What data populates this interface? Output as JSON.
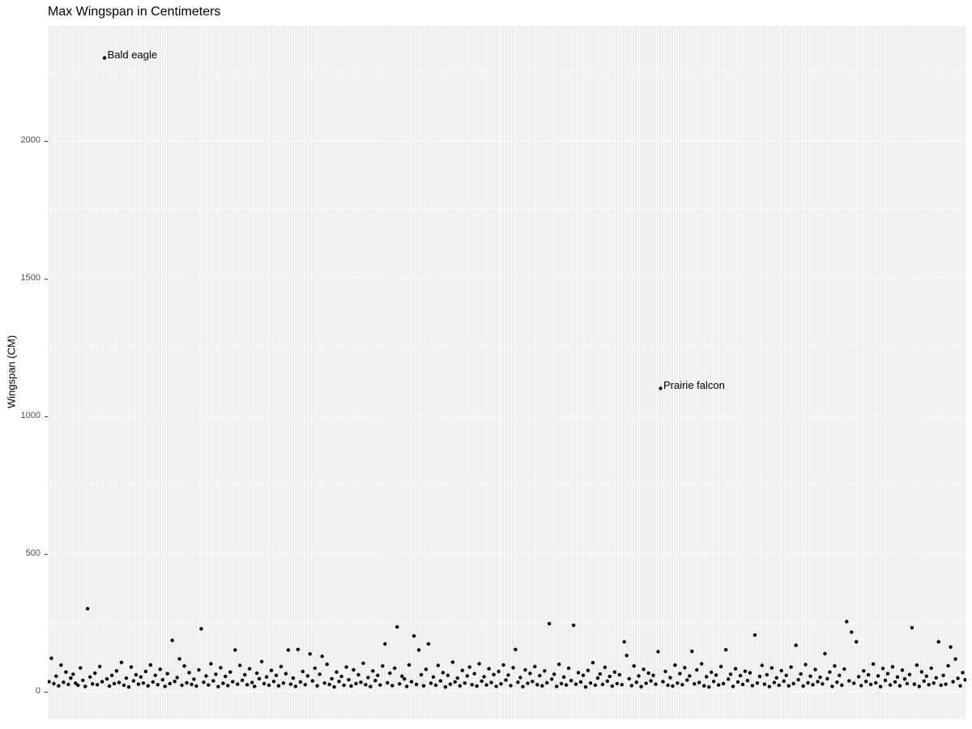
{
  "chart_data": {
    "type": "scatter",
    "title": "Max Wingspan in Centimeters",
    "ylabel": "Wingspan (CM)",
    "xlabel": "",
    "x_axis": "bird species (unlabeled categorical axis, one point per species)",
    "y_ticks": [
      0,
      500,
      1000,
      1500,
      2000
    ],
    "y_minor_gridlines": [
      250,
      750,
      1250,
      1750,
      2250
    ],
    "y_range_shown": [
      -95,
      2415
    ],
    "grid": "grey panel, white major/minor horizontal gridlines, dense white vertical gridlines",
    "legend": "none",
    "annotations": [
      {
        "label": "Bald eagle",
        "index": 23,
        "value": 2300
      },
      {
        "label": "Prairie falcon",
        "index": 253,
        "value": 1100
      }
    ],
    "values": [
      35,
      120,
      28,
      55,
      20,
      95,
      33,
      70,
      25,
      48,
      62,
      30,
      22,
      85,
      40,
      18,
      300,
      52,
      27,
      66,
      24,
      90,
      35,
      2300,
      45,
      19,
      58,
      28,
      74,
      32,
      105,
      22,
      48,
      16,
      88,
      38,
      60,
      26,
      52,
      30,
      72,
      20,
      96,
      34,
      58,
      24,
      80,
      42,
      18,
      64,
      28,
      185,
      36,
      50,
      118,
      22,
      92,
      31,
      68,
      25,
      44,
      19,
      78,
      227,
      33,
      56,
      23,
      100,
      38,
      62,
      17,
      86,
      29,
      54,
      21,
      70,
      35,
      150,
      26,
      94,
      40,
      60,
      24,
      82,
      32,
      18,
      66,
      46,
      108,
      28,
      52,
      22,
      76,
      36,
      58,
      20,
      90,
      30,
      64,
      150,
      26,
      48,
      18,
      152,
      34,
      72,
      24,
      56,
      136,
      38,
      84,
      20,
      62,
      127,
      30,
      98,
      25,
      46,
      16,
      70,
      36,
      54,
      22,
      88,
      42,
      19,
      78,
      28,
      60,
      33,
      102,
      24,
      50,
      17,
      74,
      39,
      58,
      23,
      92,
      172,
      31,
      66,
      21,
      84,
      234,
      27,
      55,
      45,
      18,
      96,
      35,
      201,
      25,
      150,
      60,
      20,
      80,
      172,
      29,
      52,
      22,
      94,
      38,
      68,
      16,
      58,
      26,
      106,
      34,
      48,
      20,
      76,
      30,
      56,
      88,
      24,
      64,
      19,
      100,
      37,
      53,
      23,
      82,
      32,
      61,
      18,
      72,
      27,
      96,
      41,
      59,
      21,
      86,
      152,
      33,
      50,
      17,
      78,
      29,
      65,
      36,
      90,
      24,
      57,
      20,
      74,
      31,
      246,
      44,
      62,
      18,
      98,
      28,
      52,
      23,
      84,
      39,
      240,
      26,
      68,
      34,
      58,
      16,
      76,
      30,
      104,
      22,
      48,
      63,
      25,
      87,
      37,
      54,
      19,
      70,
      28,
      60,
      24,
      180,
      130,
      46,
      21,
      92,
      33,
      56,
      17,
      80,
      29,
      66,
      38,
      58,
      26,
      144,
      1100,
      35,
      72,
      22,
      50,
      19,
      95,
      30,
      64,
      24,
      86,
      41,
      56,
      145,
      27,
      78,
      32,
      100,
      20,
      53,
      16,
      69,
      36,
      59,
      23,
      90,
      28,
      151,
      44,
      62,
      18,
      82,
      34,
      57,
      25,
      73,
      39,
      67,
      21,
      204,
      30,
      54,
      94,
      26,
      60,
      17,
      85,
      32,
      49,
      22,
      75,
      37,
      58,
      20,
      88,
      28,
      167,
      42,
      63,
      19,
      97,
      31,
      55,
      24,
      79,
      35,
      51,
      27,
      137,
      46,
      70,
      18,
      92,
      33,
      58,
      22,
      81,
      253,
      38,
      215,
      29,
      180,
      53,
      21,
      74,
      36,
      60,
      25,
      99,
      31,
      56,
      17,
      83,
      40,
      64,
      23,
      89,
      34,
      52,
      20,
      77,
      45,
      28,
      61,
      231,
      26,
      95,
      18,
      71,
      37,
      55,
      24,
      84,
      30,
      49,
      180,
      22,
      58,
      26,
      93,
      161,
      35,
      117,
      47,
      20,
      68,
      42
    ]
  },
  "colors": {
    "panel_background": "#ebebeb",
    "gridline": "#ffffff",
    "point": "#000000",
    "tick_label": "#4d4d4d",
    "axis_tick": "#333333",
    "title": "#000000",
    "annotation": "#000000"
  }
}
